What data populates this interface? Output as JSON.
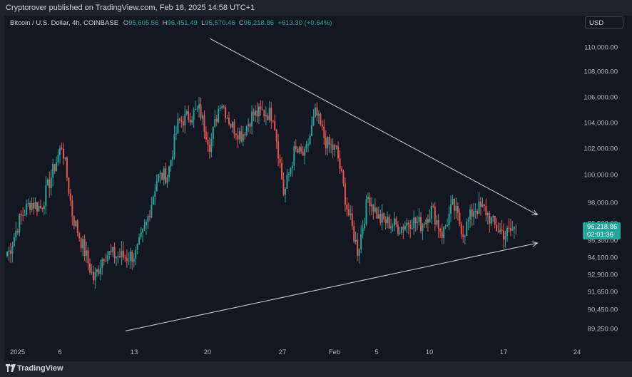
{
  "header": {
    "publisher": "Cryptorover published on TradingView.com, Feb 18, 2025 14:58 UTC+1"
  },
  "legend": {
    "instrument": "Bitcoin / U.S. Dollar, 4h, COINBASE",
    "o_label": "O",
    "o_value": "95,605.56",
    "h_label": "H",
    "h_value": "96,451.49",
    "l_label": "L",
    "l_value": "95,570.46",
    "c_label": "C",
    "c_value": "96,218.86",
    "change": "+613.30 (+0.64%)"
  },
  "currency": "USD",
  "price_label": {
    "price": "96,218.86",
    "countdown": "02:01:36"
  },
  "footer": {
    "brand": "TradingView"
  },
  "colors": {
    "up": "#26a69a",
    "down": "#ef5350",
    "background": "#131722",
    "trendline": "#d1d4dc"
  },
  "chart_data": {
    "type": "candlestick",
    "interval": "4h",
    "y_axis_ticks": [
      "110,000.00",
      "108,000.00",
      "106,000.00",
      "104,000.00",
      "102,000.00",
      "100,000.00",
      "98,000.00",
      "96,500.00",
      "95,300.00",
      "94,100.00",
      "92,900.00",
      "91,650.00",
      "90,450.00",
      "89,250.00"
    ],
    "x_axis_ticks": [
      "2025",
      "6",
      "13",
      "20",
      "27",
      "Feb",
      "5",
      "10",
      "17",
      "24"
    ],
    "close_series_approx": [
      {
        "date": "2025-01-01",
        "close": 94500
      },
      {
        "date": "2025-01-02",
        "close": 96800
      },
      {
        "date": "2025-01-03",
        "close": 98000
      },
      {
        "date": "2025-01-04",
        "close": 97600
      },
      {
        "date": "2025-01-06",
        "close": 102300
      },
      {
        "date": "2025-01-07",
        "close": 97000
      },
      {
        "date": "2025-01-08",
        "close": 94800
      },
      {
        "date": "2025-01-09",
        "close": 92500
      },
      {
        "date": "2025-01-10",
        "close": 94400
      },
      {
        "date": "2025-01-12",
        "close": 94100
      },
      {
        "date": "2025-01-13",
        "close": 94300
      },
      {
        "date": "2025-01-14",
        "close": 96500
      },
      {
        "date": "2025-01-15",
        "close": 99800
      },
      {
        "date": "2025-01-16",
        "close": 100000
      },
      {
        "date": "2025-01-17",
        "close": 104000
      },
      {
        "date": "2025-01-19",
        "close": 105000
      },
      {
        "date": "2025-01-20",
        "close": 102200
      },
      {
        "date": "2025-01-21",
        "close": 105800
      },
      {
        "date": "2025-01-22",
        "close": 103800
      },
      {
        "date": "2025-01-23",
        "close": 103000
      },
      {
        "date": "2025-01-24",
        "close": 104600
      },
      {
        "date": "2025-01-25",
        "close": 104800
      },
      {
        "date": "2025-01-26",
        "close": 104600
      },
      {
        "date": "2025-01-27",
        "close": 98500
      },
      {
        "date": "2025-01-28",
        "close": 101800
      },
      {
        "date": "2025-01-29",
        "close": 101400
      },
      {
        "date": "2025-01-30",
        "close": 104800
      },
      {
        "date": "2025-01-31",
        "close": 102400
      },
      {
        "date": "2025-02-01",
        "close": 101800
      },
      {
        "date": "2025-02-02",
        "close": 97500
      },
      {
        "date": "2025-02-03",
        "close": 94500
      },
      {
        "date": "2025-02-04",
        "close": 98500
      },
      {
        "date": "2025-02-05",
        "close": 96800
      },
      {
        "date": "2025-02-06",
        "close": 96500
      },
      {
        "date": "2025-02-07",
        "close": 96200
      },
      {
        "date": "2025-02-08",
        "close": 96700
      },
      {
        "date": "2025-02-09",
        "close": 96400
      },
      {
        "date": "2025-02-10",
        "close": 97500
      },
      {
        "date": "2025-02-11",
        "close": 95700
      },
      {
        "date": "2025-02-12",
        "close": 97800
      },
      {
        "date": "2025-02-13",
        "close": 95800
      },
      {
        "date": "2025-02-14",
        "close": 97600
      },
      {
        "date": "2025-02-15",
        "close": 97500
      },
      {
        "date": "2025-02-16",
        "close": 96200
      },
      {
        "date": "2025-02-17",
        "close": 95700
      },
      {
        "date": "2025-02-18",
        "close": 96219
      }
    ],
    "trendlines": [
      {
        "name": "descending",
        "from": {
          "date": "2025-01-20",
          "price": 110700
        },
        "to": {
          "date": "2025-02-20",
          "price": 97100
        }
      },
      {
        "name": "ascending",
        "from": {
          "date": "2025-01-12",
          "price": 89100
        },
        "to": {
          "date": "2025-02-20",
          "price": 95100
        }
      }
    ],
    "last_price": 96218.86
  }
}
